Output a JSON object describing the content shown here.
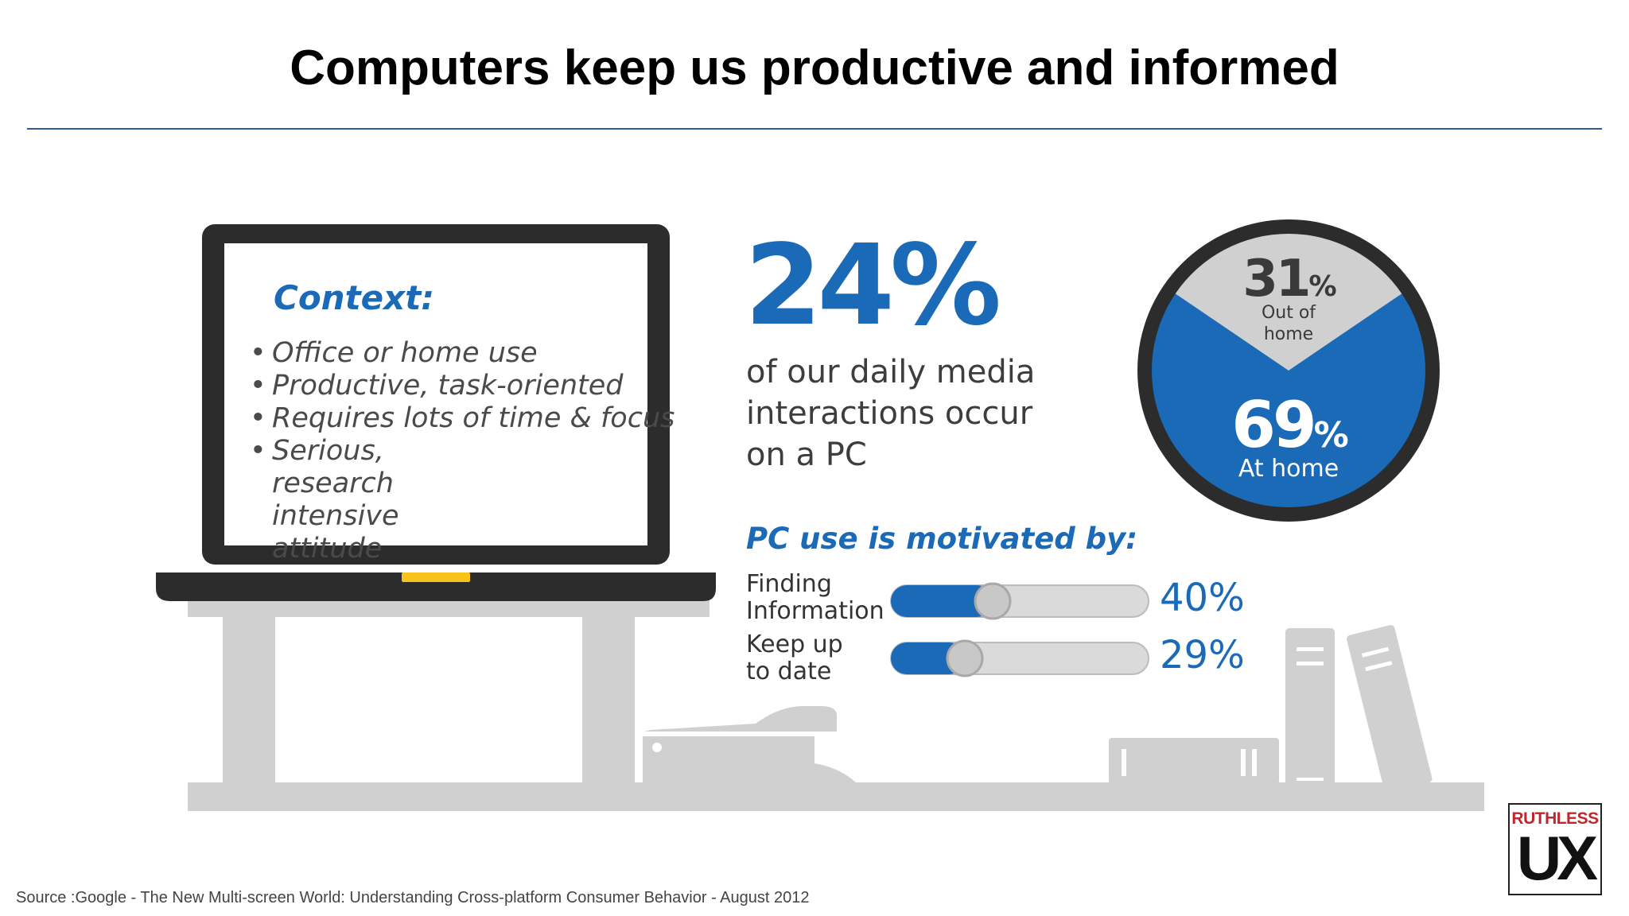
{
  "slide": {
    "title": "Computers keep us productive and informed",
    "source": "Source :Google -  The New Multi-screen World: Understanding Cross-platform Consumer Behavior - August 2012"
  },
  "context": {
    "heading": "Context:",
    "items": [
      "Office or home use",
      "Productive, task-oriented",
      "Requires lots of time & focus",
      "Serious, research intensive attitude"
    ]
  },
  "headline_stat": {
    "value": "24%",
    "description": "of our daily media interactions occur on a PC"
  },
  "location_split": {
    "out_of_home": {
      "value": "31",
      "unit": "%",
      "label": "Out of home",
      "fraction": 0.31
    },
    "at_home": {
      "value": "69",
      "unit": "%",
      "label": "At home",
      "fraction": 0.69
    }
  },
  "motivation": {
    "heading": "PC use is motivated by:",
    "bars": [
      {
        "label": "Finding Information",
        "value_text": "40%",
        "value": 40
      },
      {
        "label": "Keep up to date",
        "value_text": "29%",
        "value": 29
      }
    ]
  },
  "logo": {
    "top": "RUTHLESS",
    "bottom": "UX"
  },
  "colors": {
    "accent_blue": "#1a6ab8",
    "dark_gray": "#3a3a3a",
    "light_gray": "#d0d0d0",
    "highlight_yellow": "#f7c31a"
  }
}
